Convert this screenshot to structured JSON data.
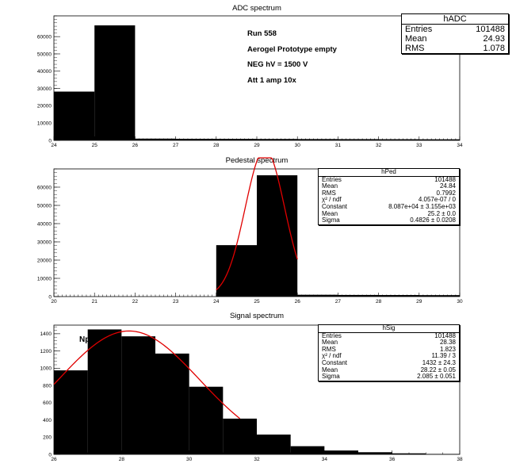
{
  "page_colors": {
    "background": "#ffffff",
    "fill": "#000000",
    "fit": "#e00000"
  },
  "chart_data": [
    {
      "type": "bar",
      "title": "ADC spectrum",
      "xlabel": "",
      "ylabel": "",
      "xlim": [
        24,
        34
      ],
      "ylim": [
        0,
        72000
      ],
      "xticks": [
        "24",
        "25",
        "26",
        "27",
        "28",
        "29",
        "30",
        "31",
        "32",
        "33",
        "34"
      ],
      "yticks": [
        "0",
        "10000",
        "20000",
        "30000",
        "40000",
        "50000",
        "60000"
      ],
      "bin_edges": [
        24,
        25,
        26,
        27,
        28,
        29,
        30,
        31,
        32,
        33,
        34
      ],
      "values": [
        28200,
        66500,
        1000,
        900,
        850,
        800,
        750,
        700,
        650,
        600
      ],
      "stats": {
        "name": "hADC",
        "rows": [
          {
            "label": "Entries",
            "value": "101488"
          },
          {
            "label": "Mean",
            "value": "24.93"
          },
          {
            "label": "RMS",
            "value": "1.078"
          }
        ]
      },
      "annotations": [
        "Run  558",
        "Aerogel Prototype empty",
        "NEG hV = 1500 V",
        "Att 1 amp 10x"
      ]
    },
    {
      "type": "bar",
      "title": "Pedestal spectrum",
      "xlabel": "",
      "ylabel": "",
      "xlim": [
        20,
        30
      ],
      "ylim": [
        0,
        70000
      ],
      "xticks": [
        "20",
        "21",
        "22",
        "23",
        "24",
        "25",
        "26",
        "27",
        "28",
        "29",
        "30"
      ],
      "yticks": [
        "0",
        "10000",
        "20000",
        "30000",
        "40000",
        "50000",
        "60000"
      ],
      "bin_edges": [
        20,
        21,
        22,
        23,
        24,
        25,
        26,
        27,
        28,
        29,
        30
      ],
      "values": [
        0,
        0,
        0,
        0,
        28200,
        66500,
        1000,
        900,
        850,
        800
      ],
      "fit": {
        "function": "gaus",
        "constant": 80870,
        "mean": 25.2,
        "sigma": 0.4826,
        "range": [
          24,
          26
        ]
      },
      "stats": {
        "name": "hPed",
        "rows": [
          {
            "label": "Entries",
            "value": "101488"
          },
          {
            "label": "Mean",
            "value": "24.84"
          },
          {
            "label": "RMS",
            "value": "0.7992"
          },
          {
            "label": "χ² / ndf",
            "value": "4.057e-07 / 0"
          },
          {
            "label": "Constant",
            "value": "8.087e+04 ± 3.155e+03"
          },
          {
            "label": "Mean",
            "value": "25.2 ± 0.0"
          },
          {
            "label": "Sigma",
            "value": "0.4826 ± 0.0208"
          }
        ]
      }
    },
    {
      "type": "bar",
      "title": "Signal spectrum",
      "xlabel": "",
      "ylabel": "",
      "xlim": [
        26,
        38
      ],
      "ylim": [
        0,
        1500
      ],
      "xticks": [
        "26",
        "28",
        "30",
        "32",
        "34",
        "36",
        "38"
      ],
      "yticks": [
        "0",
        "200",
        "400",
        "600",
        "800",
        "1000",
        "1200",
        "1400"
      ],
      "bin_edges": [
        26,
        27,
        28,
        29,
        30,
        31,
        32,
        33,
        34,
        35,
        36,
        37,
        38
      ],
      "values": [
        975,
        1450,
        1370,
        1170,
        785,
        415,
        230,
        95,
        45,
        25,
        12,
        5
      ],
      "fit": {
        "function": "gaus",
        "constant": 1432,
        "mean": 28.22,
        "sigma": 2.085,
        "range": [
          26,
          31.5
        ]
      },
      "stats": {
        "name": "hSig",
        "rows": [
          {
            "label": "Entries",
            "value": "101488"
          },
          {
            "label": "Mean",
            "value": "28.38"
          },
          {
            "label": "RMS",
            "value": "1.823"
          },
          {
            "label": "χ² / ndf",
            "value": "11.39 / 3"
          },
          {
            "label": "Constant",
            "value": "1432 ± 24.3"
          },
          {
            "label": "Mean",
            "value": "28.22 ± 0.05"
          },
          {
            "label": "Sigma",
            "value": "2.085 ± 0.051"
          }
        ]
      },
      "annotations": [
        "Np"
      ]
    }
  ]
}
